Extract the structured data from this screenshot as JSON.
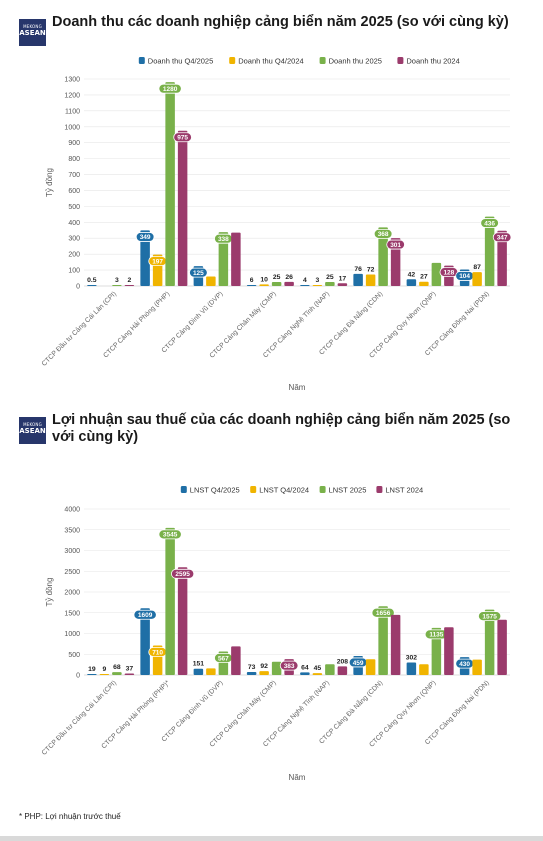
{
  "brand": {
    "line1": "MEKONG",
    "line2": "ASEAN"
  },
  "charts": [
    {
      "title": "Doanh thu các doanh nghiệp cảng biển năm 2025 (so với cùng kỳ)",
      "chart_data": {
        "type": "bar",
        "ylabel": "Tỷ đồng",
        "xlabel": "Năm",
        "ylim": [
          0,
          1300
        ],
        "yticks": [
          0,
          100,
          200,
          300,
          400,
          500,
          600,
          700,
          800,
          900,
          1000,
          1100,
          1200,
          1300
        ],
        "legend_position": "top",
        "grid": true,
        "categories": [
          "CTCP Đầu tư Cảng Cái Lân (CPI)",
          "CTCP Cảng Hải Phòng (PHP)",
          "CTCP Cảng Đình Vũ (DVP)",
          "CTCP Cảng Chân Mây (CMP)",
          "CTCP Cảng Nghệ Tĩnh (NAP)",
          "CTCP Cảng Đà Nẵng (CDN)",
          "CTCP Cảng Quy Nhơn (QNP)",
          "CTCP Cảng Đồng Nai (PDN)"
        ],
        "series": [
          {
            "name": "Doanh thu Q4/2025",
            "color": "#1f6fa6",
            "values": [
              0.5,
              349,
              125,
              6,
              4,
              76,
              42,
              104
            ],
            "labels": [
              "0.5",
              "349",
              "125",
              "6",
              "4",
              "76",
              "42",
              "104"
            ],
            "badges": [
              false,
              true,
              true,
              false,
              false,
              false,
              false,
              true
            ]
          },
          {
            "name": "Doanh thu Q4/2024",
            "color": "#f0b400",
            "values": [
              0,
              197,
              60,
              10,
              3,
              72,
              27,
              87
            ],
            "labels": [
              "",
              "197",
              "",
              "10",
              "3",
              "72",
              "27",
              "87"
            ],
            "badges": [
              false,
              true,
              false,
              false,
              false,
              false,
              false,
              false
            ]
          },
          {
            "name": "Doanh thu 2025",
            "color": "#79b14a",
            "values": [
              3,
              1280,
              338,
              25,
              25,
              368,
              145,
              436
            ],
            "labels": [
              "3",
              "1280",
              "338",
              "25",
              "25",
              "368",
              "",
              "436"
            ],
            "badges": [
              false,
              true,
              true,
              false,
              false,
              true,
              false,
              true
            ]
          },
          {
            "name": "Doanh thu 2024",
            "color": "#9b3b6c",
            "values": [
              2,
              975,
              335,
              26,
              17,
              301,
              128,
              347
            ],
            "labels": [
              "2",
              "975",
              "",
              "26",
              "17",
              "301",
              "128",
              "347"
            ],
            "badges": [
              false,
              true,
              false,
              false,
              false,
              true,
              true,
              true
            ]
          }
        ]
      }
    },
    {
      "title": "Lợi nhuận sau thuế của các doanh nghiệp cảng biển năm 2025 (so với cùng kỳ)",
      "chart_data": {
        "type": "bar",
        "ylabel": "Tỷ đồng",
        "xlabel": "Năm",
        "ylim": [
          0,
          4000
        ],
        "yticks": [
          0,
          500,
          1000,
          1500,
          2000,
          2500,
          3000,
          3500,
          4000
        ],
        "legend_position": "top",
        "grid": true,
        "categories": [
          "CTCP Đầu tư Cảng Cái Lân (CPI)",
          "CTCP Cảng Hải Phòng (PHP)*",
          "CTCP Cảng Đình Vũ (DVP)",
          "CTCP Cảng Chân Mây (CMP)",
          "CTCP Cảng Nghệ Tĩnh (NAP)",
          "CTCP Cảng Đà Nẵng (CDN)",
          "CTCP Cảng Quy Nhơn (QNP)",
          "CTCP Cảng Đồng Nai (PDN)"
        ],
        "series": [
          {
            "name": "LNST Q4/2025",
            "color": "#1f6fa6",
            "values": [
              19,
              1609,
              151,
              73,
              64,
              459,
              302,
              430
            ],
            "labels": [
              "19",
              "1609",
              "151",
              "73",
              "64",
              "459",
              "302",
              "430"
            ],
            "badges": [
              false,
              true,
              false,
              false,
              false,
              true,
              false,
              true
            ]
          },
          {
            "name": "LNST Q4/2024",
            "color": "#f0b400",
            "values": [
              9,
              710,
              160,
              92,
              45,
              380,
              260,
              370
            ],
            "labels": [
              "9",
              "710",
              "",
              "92",
              "45",
              "",
              "",
              ""
            ],
            "badges": [
              false,
              true,
              false,
              false,
              false,
              false,
              false,
              false
            ]
          },
          {
            "name": "LNST 2025",
            "color": "#79b14a",
            "values": [
              68,
              3545,
              567,
              320,
              260,
              1656,
              1135,
              1575
            ],
            "labels": [
              "68",
              "3545",
              "567",
              "",
              "",
              "1656",
              "1135",
              "1575"
            ],
            "badges": [
              false,
              true,
              true,
              false,
              false,
              true,
              true,
              true
            ]
          },
          {
            "name": "LNST 2024",
            "color": "#9b3b6c",
            "values": [
              37,
              2595,
              690,
              383,
              208,
              1450,
              1150,
              1330
            ],
            "labels": [
              "37",
              "2595",
              "",
              "383",
              "208",
              "",
              "",
              ""
            ],
            "badges": [
              false,
              true,
              false,
              true,
              false,
              false,
              false,
              false
            ]
          }
        ]
      }
    }
  ],
  "footnote": "* PHP: Lợi nhuận trước thuế"
}
